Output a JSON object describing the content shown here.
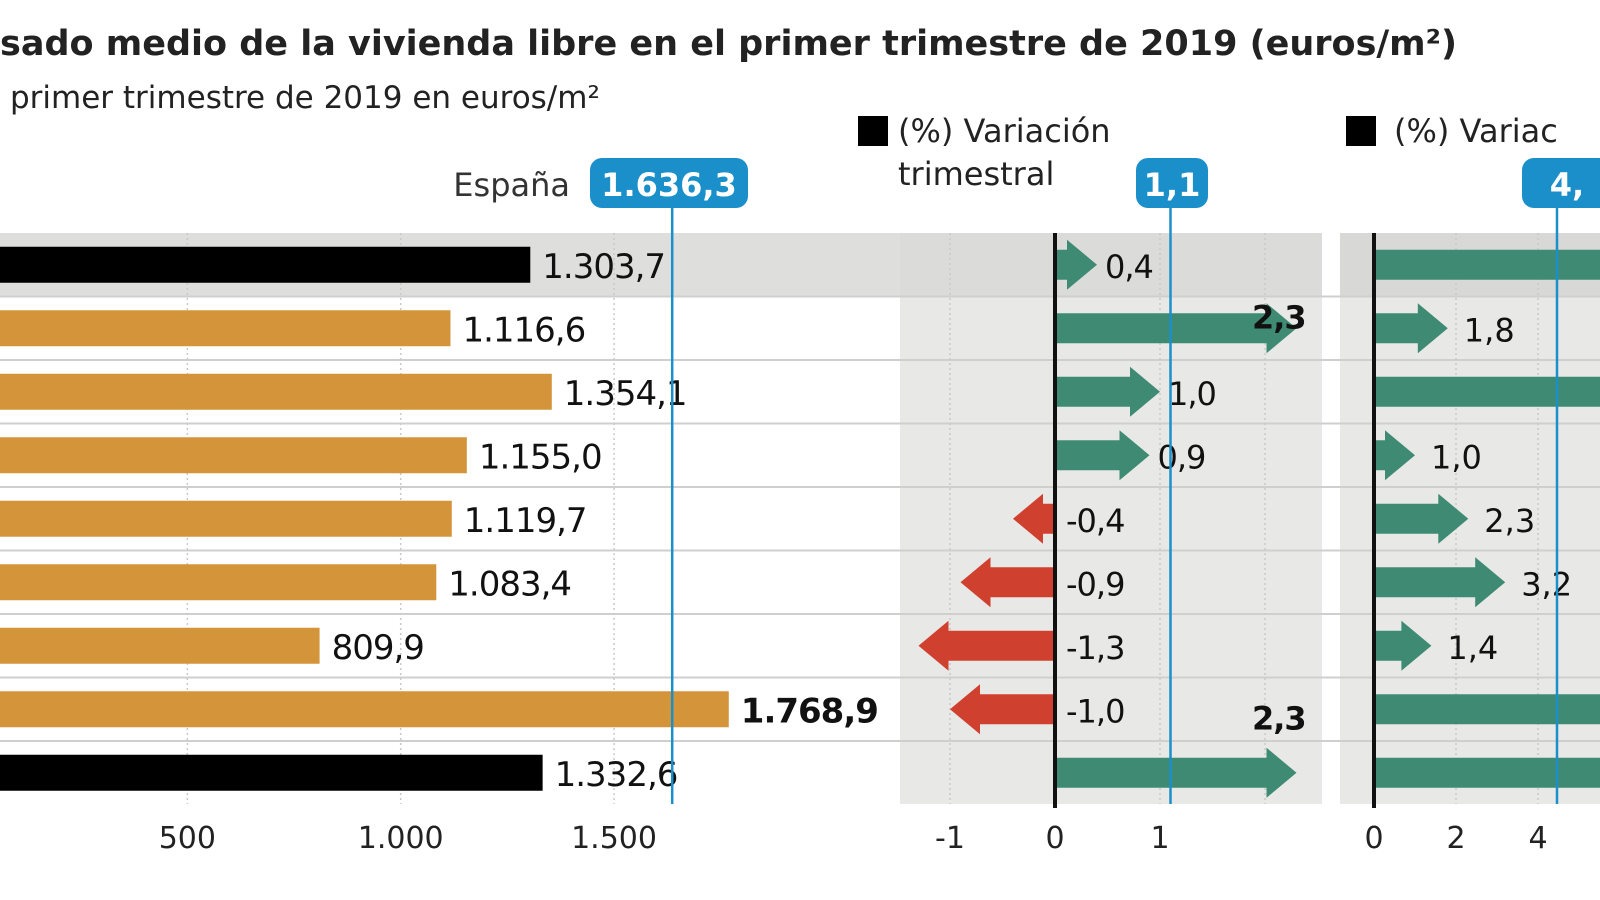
{
  "title": "sado medio de la vivienda libre en el primer trimestre de 2019 (euros/m²)",
  "subtitle": "primer trimestre de 2019 en euros/m²",
  "colors": {
    "bar_default": "#d4953a",
    "bar_highlight": "#000000",
    "reference": "#1a8fc9",
    "positive": "#3e8a73",
    "negative": "#d0402e",
    "panel_bg": "#e8e8e6",
    "highlight_row_bg": "#d8d9d6"
  },
  "chart_data": [
    {
      "type": "bar",
      "orientation": "horizontal",
      "values": [
        1303.7,
        1116.6,
        1354.1,
        1155.0,
        1119.7,
        1083.4,
        809.9,
        1768.9,
        1332.6
      ],
      "value_labels": [
        "1.303,7",
        "1.116,6",
        "1.354,1",
        "1.155,0",
        "1.119,7",
        "1.083,4",
        "809,9",
        "1.768,9",
        "1.332,6"
      ],
      "highlighted_rows": [
        0,
        8
      ],
      "bold_label_rows": [
        7
      ],
      "xticks": [
        "500",
        "1.000",
        "1.500"
      ],
      "xtick_values": [
        500,
        1000,
        1500
      ],
      "reference": {
        "label": "España",
        "value": 1636.3,
        "value_label": "1.636,3"
      },
      "grid": true
    },
    {
      "type": "bar",
      "orientation": "horizontal",
      "style": "arrows",
      "legend": "(%) Variación trimestral",
      "legend_lines": [
        "(%) Variación",
        "trimestral"
      ],
      "values": [
        0.4,
        2.3,
        1.0,
        0.9,
        -0.4,
        -0.9,
        -1.3,
        -1.0,
        2.3
      ],
      "value_labels": [
        "0,4",
        "2,3",
        "1,0",
        "0,9",
        "-0,4",
        "-0,9",
        "-1,3",
        "-1,0",
        "2,3"
      ],
      "xticks": [
        "-1",
        "0",
        "1"
      ],
      "xtick_values": [
        -1,
        0,
        1
      ],
      "reference": {
        "value": 1.1,
        "value_label": "1,1"
      },
      "grid": true
    },
    {
      "type": "bar",
      "orientation": "horizontal",
      "style": "arrows",
      "legend": "(%) Variac",
      "values": [
        null,
        1.8,
        null,
        1.0,
        2.3,
        3.2,
        1.4,
        null,
        null
      ],
      "value_labels": [
        null,
        "1,8",
        null,
        "1,0",
        "2,3",
        "3,2",
        "1,4",
        null,
        null
      ],
      "xticks": [
        "0",
        "2",
        "4"
      ],
      "xtick_values": [
        0,
        2,
        4
      ],
      "reference": {
        "value_label": "4,"
      },
      "grid": true
    }
  ]
}
